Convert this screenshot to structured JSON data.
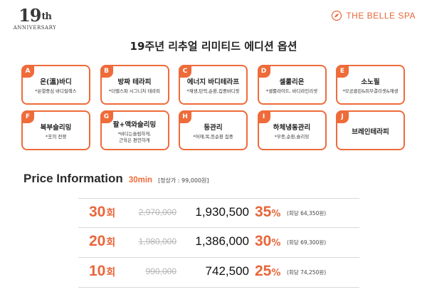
{
  "anniversary": {
    "number": "19",
    "suffix": "th",
    "label": "ANNIVERSARY"
  },
  "brand": {
    "name": "THE BELLE SPA",
    "logo_icon": "belle-spa-logo-icon",
    "color": "#e8663a"
  },
  "title": "19주년 리추얼 리미티드 에디션 옵션",
  "accent_color": "#ef6b3a",
  "options": [
    {
      "letter": "A",
      "name": "온(溫)바디",
      "desc": [
        "*온열중심 바디릴렉스"
      ]
    },
    {
      "letter": "B",
      "name": "방짜 테라피",
      "desc": [
        "*더벨스파 시그니처 테라피"
      ]
    },
    {
      "letter": "C",
      "name": "에너지 바디테라프",
      "desc": [
        "*재생,탄력,순환,집중바디핏"
      ]
    },
    {
      "letter": "D",
      "name": "셀룰리온",
      "desc": [
        "*셀룰라이트, 바디라인리셋"
      ]
    },
    {
      "letter": "E",
      "name": "소노필",
      "desc": [
        "*모공클린&피부결리셋&재생"
      ]
    },
    {
      "letter": "F",
      "name": "복부슬리밍",
      "desc": [
        "*王의 전쟁"
      ]
    },
    {
      "letter": "G",
      "name": "팔+액와슬리밍",
      "desc": [
        "*바디는슬림하게,",
        "근육은 편안하게"
      ]
    },
    {
      "letter": "H",
      "name": "등관리",
      "desc": [
        "*어깨,목,등순환 집중"
      ]
    },
    {
      "letter": "I",
      "name": "하체냉동관리",
      "desc": [
        "*부종,순환,슬리밍"
      ]
    },
    {
      "letter": "J",
      "name": "브레인테라피",
      "desc": []
    }
  ],
  "price_info": {
    "heading": "Price Information",
    "duration": "30min",
    "regular_price": "[정상가 : 99,000원]",
    "rows": [
      {
        "count": "30",
        "count_unit": "회",
        "original": "2,970,000",
        "price": "1,930,500",
        "discount": "35",
        "discount_unit": "%",
        "per_session": "(회당 64,350원)"
      },
      {
        "count": "20",
        "count_unit": "회",
        "original": "1,980,000",
        "price": "1,386,000",
        "discount": "30",
        "discount_unit": "%",
        "per_session": "(회당 69,300원)"
      },
      {
        "count": "10",
        "count_unit": "회",
        "original": "990,000",
        "price": "742,500",
        "discount": "25",
        "discount_unit": "%",
        "per_session": "(회당 74,250원)"
      }
    ]
  }
}
